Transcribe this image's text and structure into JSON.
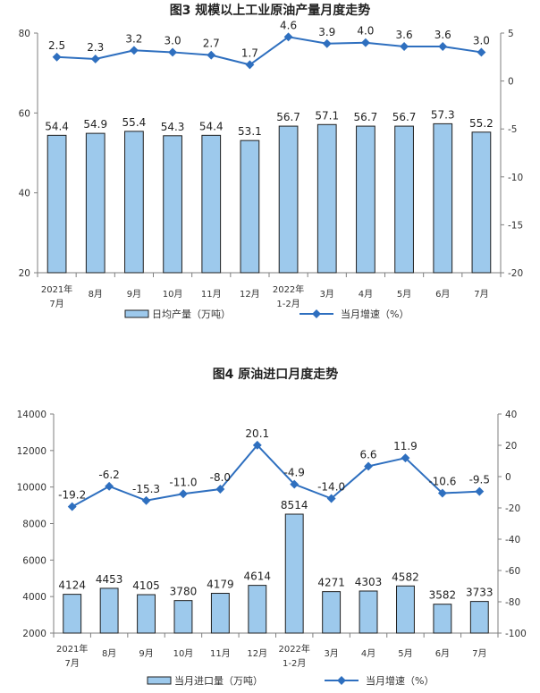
{
  "charts": [
    {
      "title": "图3  规模以上工业原油产量月度走势",
      "categories": [
        [
          "2021年",
          "7月"
        ],
        [
          "8月"
        ],
        [
          "9月"
        ],
        [
          "10月"
        ],
        [
          "11月"
        ],
        [
          "12月"
        ],
        [
          "2022年",
          "1-2月"
        ],
        [
          "3月"
        ],
        [
          "4月"
        ],
        [
          "5月"
        ],
        [
          "6月"
        ],
        [
          "7月"
        ]
      ],
      "bar_name": "日均产量（万吨）",
      "line_name": "当月增速（%）",
      "bar_values": [
        54.4,
        54.9,
        55.4,
        54.3,
        54.4,
        53.1,
        56.7,
        57.1,
        56.7,
        56.7,
        57.3,
        55.2
      ],
      "bar_labels": [
        "54.4",
        "54.9",
        "55.4",
        "54.3",
        "54.4",
        "53.1",
        "56.7",
        "57.1",
        "56.7",
        "56.7",
        "57.3",
        "55.2"
      ],
      "line_values": [
        2.5,
        2.3,
        3.2,
        3.0,
        2.7,
        1.7,
        4.6,
        3.9,
        4.0,
        3.6,
        3.6,
        3.0
      ],
      "line_labels": [
        "2.5",
        "2.3",
        "3.2",
        "3.0",
        "2.7",
        "1.7",
        "4.6",
        "3.9",
        "4.0",
        "3.6",
        "3.6",
        "3.0"
      ],
      "left_ticks": [
        "20",
        "40",
        "60",
        "80"
      ],
      "right_ticks": [
        "-20",
        "-15",
        "-10",
        "-5",
        "0",
        "5"
      ]
    },
    {
      "title": "图4  原油进口月度走势",
      "categories": [
        [
          "2021年",
          "7月"
        ],
        [
          "8月"
        ],
        [
          "9月"
        ],
        [
          "10月"
        ],
        [
          "11月"
        ],
        [
          "12月"
        ],
        [
          "2022年",
          "1-2月"
        ],
        [
          "3月"
        ],
        [
          "4月"
        ],
        [
          "5月"
        ],
        [
          "6月"
        ],
        [
          "7月"
        ]
      ],
      "bar_name": "当月进口量（万吨）",
      "line_name": "当月增速（%）",
      "bar_values": [
        4124,
        4453,
        4105,
        3780,
        4179,
        4614,
        8514,
        4271,
        4303,
        4582,
        3582,
        3733
      ],
      "bar_labels": [
        "4124",
        "4453",
        "4105",
        "3780",
        "4179",
        "4614",
        "8514",
        "4271",
        "4303",
        "4582",
        "3582",
        "3733"
      ],
      "line_values": [
        -19.2,
        -6.2,
        -15.3,
        -11.0,
        -8.0,
        20.1,
        -4.9,
        -14.0,
        6.6,
        11.9,
        -10.6,
        -9.5
      ],
      "line_labels": [
        "-19.2",
        "-6.2",
        "-15.3",
        "-11.0",
        "-8.0",
        "20.1",
        "-4.9",
        "-14.0",
        "6.6",
        "11.9",
        "-10.6",
        "-9.5"
      ],
      "left_ticks": [
        "2000",
        "4000",
        "6000",
        "8000",
        "10000",
        "12000",
        "14000"
      ],
      "right_ticks": [
        "-100",
        "-80",
        "-60",
        "-40",
        "-20",
        "0",
        "20",
        "40"
      ]
    }
  ],
  "colors": {
    "bar_fill": "#9DC9EC",
    "bar_stroke": "#1F1F1F",
    "line": "#2E6FBF"
  },
  "chart_data": [
    {
      "type": "bar",
      "title": "图3  规模以上工业原油产量月度走势",
      "categories": [
        "2021年7月",
        "8月",
        "9月",
        "10月",
        "11月",
        "12月",
        "2022年1-2月",
        "3月",
        "4月",
        "5月",
        "6月",
        "7月"
      ],
      "series": [
        {
          "name": "日均产量（万吨）",
          "type": "bar",
          "axis": "left",
          "values": [
            54.4,
            54.9,
            55.4,
            54.3,
            54.4,
            53.1,
            56.7,
            57.1,
            56.7,
            56.7,
            57.3,
            55.2
          ]
        },
        {
          "name": "当月增速（%）",
          "type": "line",
          "axis": "right",
          "values": [
            2.5,
            2.3,
            3.2,
            3.0,
            2.7,
            1.7,
            4.6,
            3.9,
            4.0,
            3.6,
            3.6,
            3.0
          ]
        }
      ],
      "ylim_left": [
        20,
        80
      ],
      "ylim_right": [
        -20,
        5
      ],
      "legend": "bottom",
      "grid": false
    },
    {
      "type": "bar",
      "title": "图4  原油进口月度走势",
      "categories": [
        "2021年7月",
        "8月",
        "9月",
        "10月",
        "11月",
        "12月",
        "2022年1-2月",
        "3月",
        "4月",
        "5月",
        "6月",
        "7月"
      ],
      "series": [
        {
          "name": "当月进口量（万吨）",
          "type": "bar",
          "axis": "left",
          "values": [
            4124,
            4453,
            4105,
            3780,
            4179,
            4614,
            8514,
            4271,
            4303,
            4582,
            3582,
            3733
          ]
        },
        {
          "name": "当月增速（%）",
          "type": "line",
          "axis": "right",
          "values": [
            -19.2,
            -6.2,
            -15.3,
            -11.0,
            -8.0,
            20.1,
            -4.9,
            -14.0,
            6.6,
            11.9,
            -10.6,
            -9.5
          ]
        }
      ],
      "ylim_left": [
        2000,
        14000
      ],
      "ylim_right": [
        -100,
        40
      ],
      "legend": "bottom",
      "grid": false
    }
  ]
}
